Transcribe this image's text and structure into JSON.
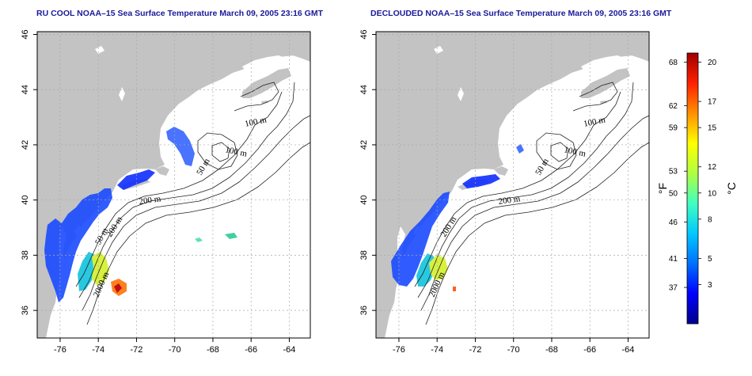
{
  "maps": [
    {
      "title": "RU COOL NOAA–15 Sea Surface Temperature March 09, 2005 23:16 GMT",
      "contour_labels": [
        "100 m",
        "100 m",
        "50 m",
        "50 m",
        "200 m",
        "200 m",
        "2000 m"
      ]
    },
    {
      "title": "DECLOUDED NOAA–15 Sea Surface Temperature March 09, 2005 23:16 GMT",
      "contour_labels": [
        "100 m",
        "100 m",
        "50 m",
        "200 m",
        "200 m",
        "2000 m"
      ]
    }
  ],
  "axes": {
    "x_ticks": [
      "-76",
      "-74",
      "-72",
      "-70",
      "-68",
      "-66",
      "-64"
    ],
    "x_values": [
      -76,
      -74,
      -72,
      -70,
      -68,
      -66,
      -64
    ],
    "y_ticks": [
      "36",
      "38",
      "40",
      "42",
      "44",
      "46"
    ],
    "y_values": [
      36,
      38,
      40,
      42,
      44,
      46
    ],
    "lon_range": [
      -77.2,
      -62.9
    ],
    "lat_range": [
      35.0,
      46.1
    ]
  },
  "colorbar": {
    "fahrenheit_ticks": [
      "68",
      "62",
      "59",
      "53",
      "50",
      "46",
      "41",
      "37"
    ],
    "fahrenheit_values": [
      68,
      62,
      59,
      53,
      50,
      46,
      41,
      37
    ],
    "celsius_ticks": [
      "20",
      "17",
      "15",
      "12",
      "10",
      "8",
      "5",
      "3"
    ],
    "celsius_values": [
      20,
      17,
      15,
      12,
      10,
      8,
      5,
      3
    ],
    "fahrenheit_unit": "°F",
    "celsius_unit": "°C",
    "celsius_range": [
      0,
      20.7
    ],
    "colors": [
      "#00008b",
      "#0000ff",
      "#0070ff",
      "#00c8ff",
      "#40ffc0",
      "#b0ff40",
      "#ffff00",
      "#ff9000",
      "#ff2000",
      "#a00000"
    ]
  },
  "colors": {
    "land": "#c3c3c3",
    "frame": "#000000",
    "grid": "#a8a8a8",
    "title": "#1a1a9a"
  }
}
